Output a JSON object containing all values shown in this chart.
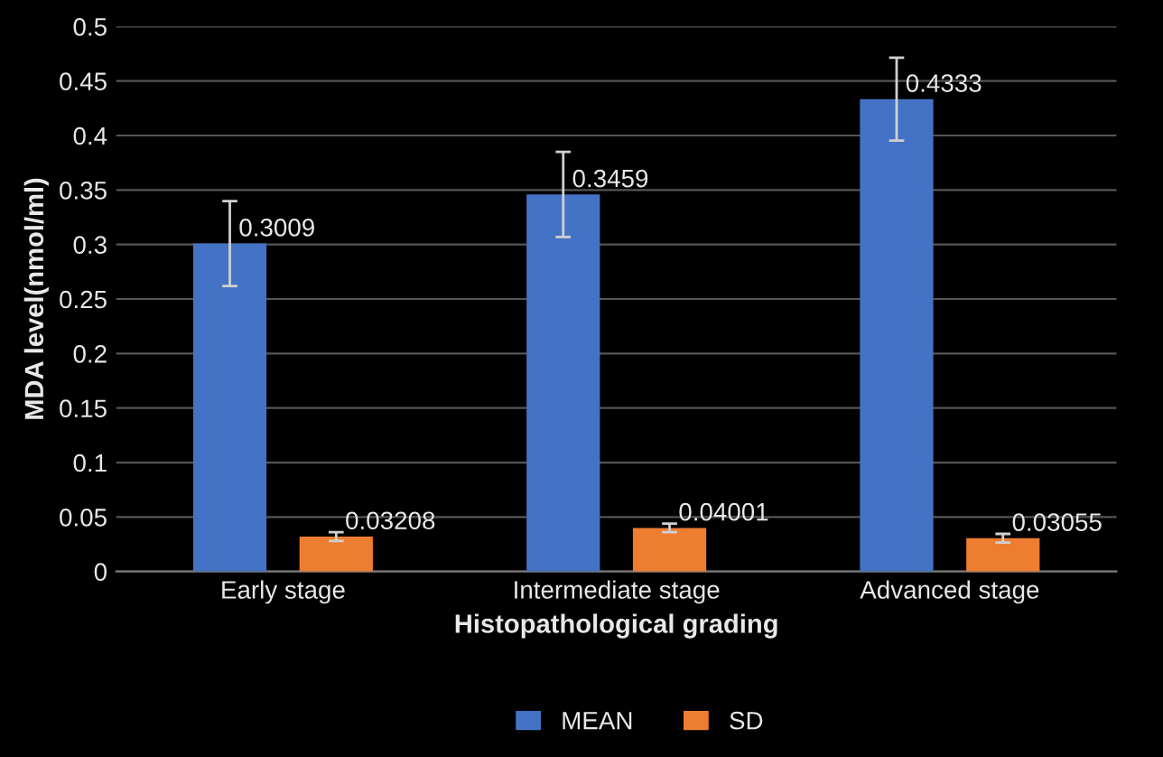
{
  "chart_data": {
    "type": "bar",
    "xlabel": "Histopathological grading",
    "ylabel": "MDA level(nmol/ml)",
    "categories": [
      "Early stage",
      "Intermediate stage",
      "Advanced stage"
    ],
    "series": [
      {
        "name": "MEAN",
        "color": "#4472c4",
        "values": [
          0.3009,
          0.3459,
          0.4333
        ],
        "errors": [
          0.039,
          0.039,
          0.038
        ]
      },
      {
        "name": "SD",
        "color": "#ed7d31",
        "values": [
          0.03208,
          0.04001,
          0.03055
        ],
        "errors": [
          0.004,
          0.004,
          0.004
        ]
      }
    ],
    "data_labels": true,
    "ylim": [
      0,
      0.5
    ],
    "yticks": [
      0,
      0.05,
      0.1,
      0.15,
      0.2,
      0.25,
      0.3,
      0.35,
      0.4,
      0.45,
      0.5
    ],
    "grid": "y",
    "legend": "bottom"
  }
}
